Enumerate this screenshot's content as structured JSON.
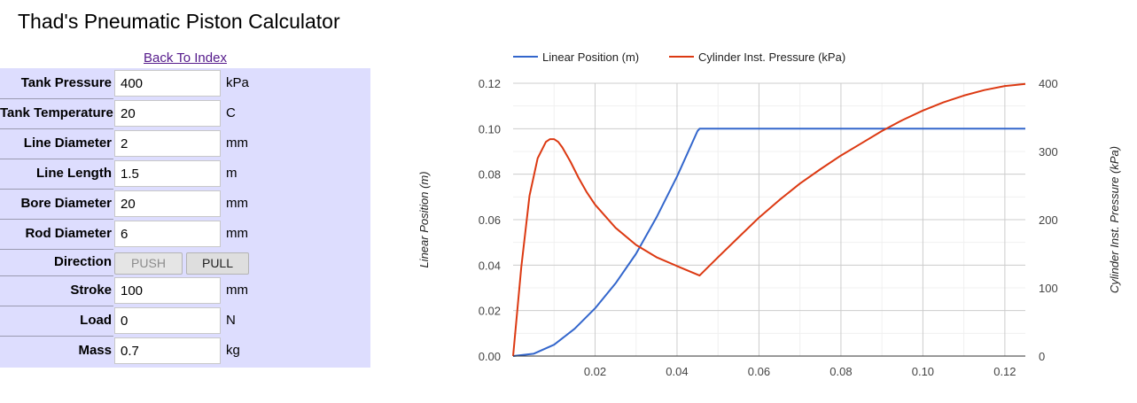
{
  "page": {
    "title": "Thad's Pneumatic Piston Calculator",
    "back_link": "Back To Index"
  },
  "form": {
    "rows": [
      {
        "label": "Tank Pressure",
        "value": "400",
        "unit": "kPa"
      },
      {
        "label": "Tank Temperature",
        "value": "20",
        "unit": "C"
      },
      {
        "label": "Line Diameter",
        "value": "2",
        "unit": "mm"
      },
      {
        "label": "Line Length",
        "value": "1.5",
        "unit": "m"
      },
      {
        "label": "Bore Diameter",
        "value": "20",
        "unit": "mm"
      },
      {
        "label": "Rod Diameter",
        "value": "6",
        "unit": "mm"
      },
      {
        "label": "Direction",
        "value": "",
        "unit": ""
      },
      {
        "label": "Stroke",
        "value": "100",
        "unit": "mm"
      },
      {
        "label": "Load",
        "value": "0",
        "unit": "N"
      },
      {
        "label": "Mass",
        "value": "0.7",
        "unit": "kg"
      }
    ],
    "direction": {
      "push_label": "PUSH",
      "pull_label": "PULL",
      "push_disabled": true
    }
  },
  "colors": {
    "panel_bg": "#ddddfe",
    "series_position": "#3366cc",
    "series_pressure": "#dc3912",
    "link": "#551a8b"
  },
  "chart_data": {
    "type": "line",
    "xlabel": "",
    "y_left_label": "Linear Position (m)",
    "y_right_label": "Cylinder Inst. Pressure (kPa)",
    "xlim": [
      0,
      0.125
    ],
    "y_left_lim": [
      0,
      0.12
    ],
    "y_right_lim": [
      0,
      400
    ],
    "x_ticks": [
      "0.02",
      "0.04",
      "0.06",
      "0.08",
      "0.10",
      "0.12"
    ],
    "y_left_ticks": [
      "0.00",
      "0.02",
      "0.04",
      "0.06",
      "0.08",
      "0.10",
      "0.12"
    ],
    "y_right_ticks": [
      "0",
      "100",
      "200",
      "300",
      "400"
    ],
    "legend_position": "top",
    "series": [
      {
        "name": "Linear Position (m)",
        "axis": "left",
        "x": [
          0,
          0.005,
          0.01,
          0.015,
          0.02,
          0.025,
          0.03,
          0.035,
          0.04,
          0.045,
          0.0455,
          0.05,
          0.07,
          0.09,
          0.11,
          0.125
        ],
        "y": [
          0,
          0.001,
          0.005,
          0.012,
          0.021,
          0.032,
          0.045,
          0.061,
          0.079,
          0.099,
          0.1,
          0.1,
          0.1,
          0.1,
          0.1,
          0.1
        ]
      },
      {
        "name": "Cylinder Inst. Pressure (kPa)",
        "axis": "right",
        "x": [
          0,
          0.002,
          0.004,
          0.006,
          0.008,
          0.009,
          0.01,
          0.011,
          0.012,
          0.014,
          0.016,
          0.018,
          0.02,
          0.025,
          0.03,
          0.035,
          0.04,
          0.0455,
          0.05,
          0.055,
          0.06,
          0.065,
          0.07,
          0.075,
          0.08,
          0.085,
          0.09,
          0.095,
          0.1,
          0.105,
          0.11,
          0.115,
          0.12,
          0.125
        ],
        "y": [
          0,
          130,
          235,
          290,
          314,
          318,
          318,
          314,
          306,
          285,
          261,
          240,
          222,
          188,
          163,
          145,
          132,
          118,
          145,
          174,
          203,
          229,
          253,
          274,
          294,
          312,
          330,
          346,
          360,
          372,
          382,
          390,
          396,
          399
        ]
      }
    ]
  }
}
